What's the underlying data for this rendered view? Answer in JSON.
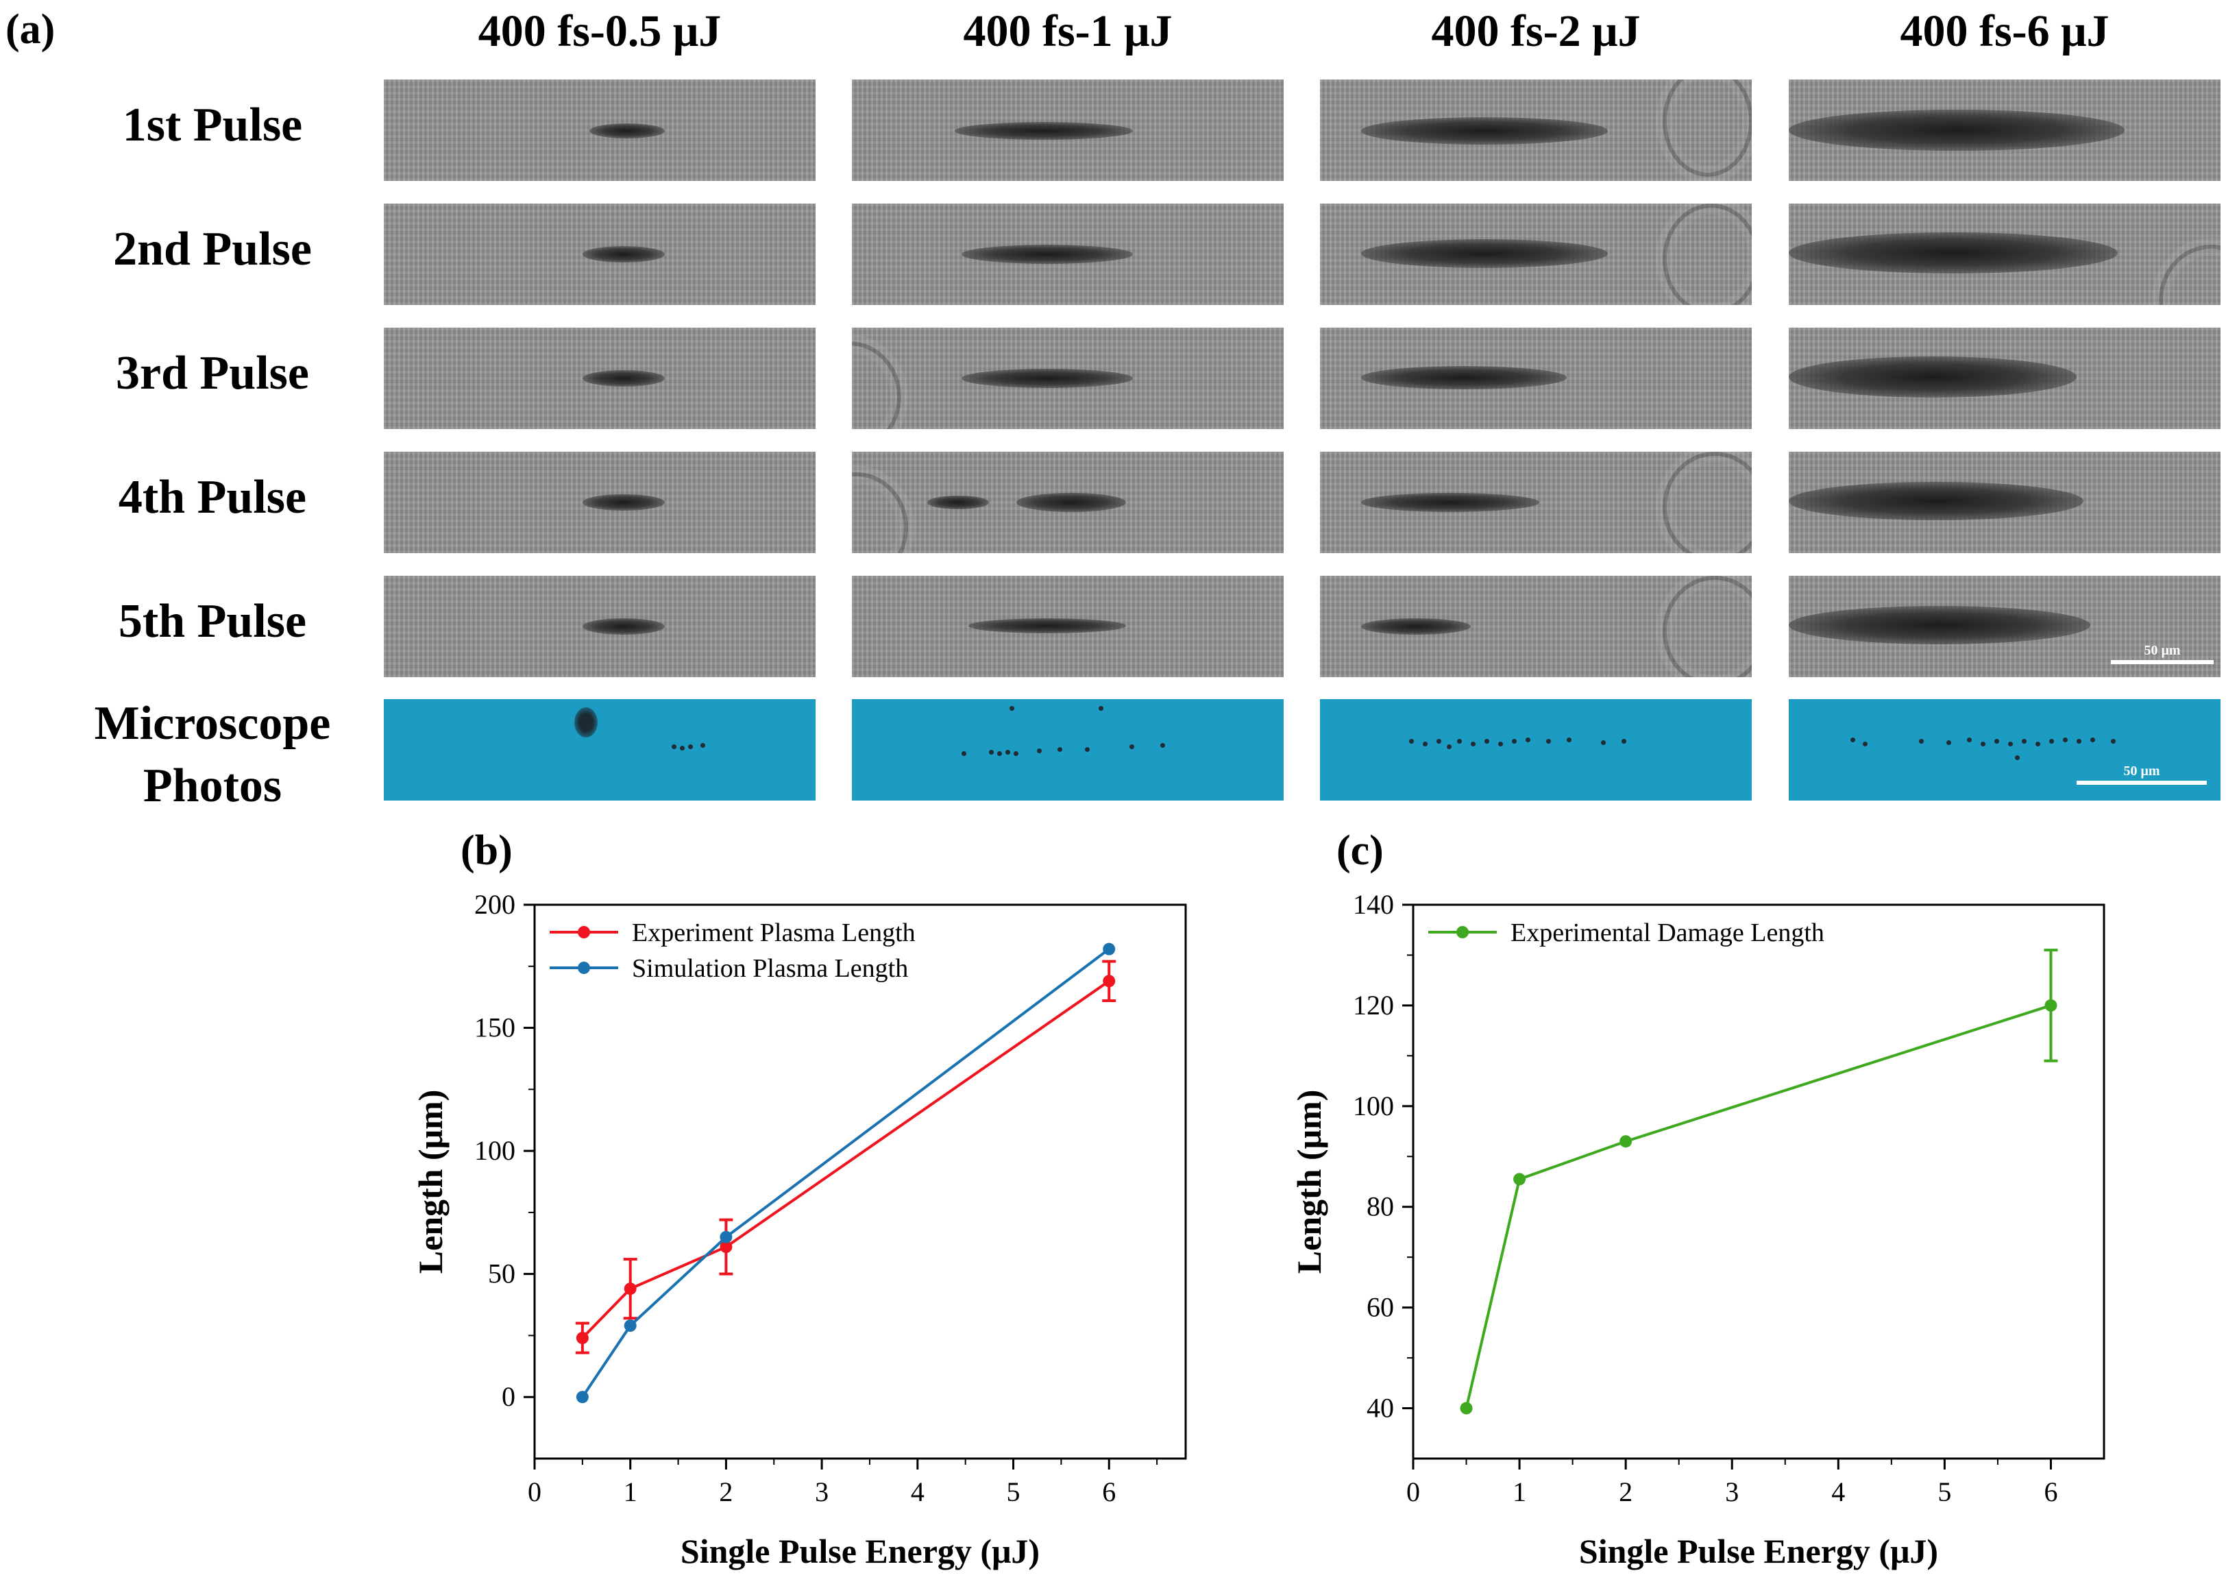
{
  "panel_labels": {
    "a": "(a)",
    "b": "(b)",
    "c": "(c)"
  },
  "columns": [
    "400 fs-0.5 μJ",
    "400 fs-1 μJ",
    "400 fs-2 μJ",
    "400 fs-6 μJ"
  ],
  "rows": [
    "1st Pulse",
    "2nd Pulse",
    "3rd Pulse",
    "4th Pulse",
    "5th Pulse"
  ],
  "microscope_label": {
    "line1": "Microscope",
    "line2": "Photos"
  },
  "scale_bar_label": "50 μm",
  "chart_data": [
    {
      "type": "line",
      "panel": "(b)",
      "title": "",
      "xlabel": "Single Pulse Energy (μJ)",
      "ylabel": "Length (μm)",
      "xlim": [
        0,
        6.8
      ],
      "ylim": [
        -25,
        200
      ],
      "xticks": [
        0,
        1,
        2,
        3,
        4,
        5,
        6
      ],
      "yticks": [
        0,
        50,
        100,
        150,
        200
      ],
      "legend_position": "top-left",
      "series": [
        {
          "name": "Experiment Plasma Length",
          "color": "#f0141e",
          "x": [
            0.5,
            1,
            2,
            6
          ],
          "y": [
            24,
            44,
            61,
            169
          ],
          "yerr": [
            6,
            12,
            11,
            8
          ]
        },
        {
          "name": "Simulation Plasma Length",
          "color": "#1a73b0",
          "x": [
            0.5,
            1,
            2,
            6
          ],
          "y": [
            0,
            29,
            65,
            182
          ],
          "yerr": null
        }
      ]
    },
    {
      "type": "line",
      "panel": "(c)",
      "title": "",
      "xlabel": "Single Pulse Energy (μJ)",
      "ylabel": "Length (μm)",
      "xlim": [
        0,
        6.5
      ],
      "ylim": [
        30,
        140
      ],
      "xticks": [
        0,
        1,
        2,
        3,
        4,
        5,
        6
      ],
      "yticks": [
        40,
        60,
        80,
        100,
        120,
        140
      ],
      "legend_position": "top-left",
      "series": [
        {
          "name": "Experimental Damage Length",
          "color": "#3ea81e",
          "x": [
            0.5,
            1,
            2,
            6
          ],
          "y": [
            40,
            85.5,
            93,
            120
          ],
          "yerr": [
            0,
            0,
            0,
            11
          ]
        }
      ]
    }
  ]
}
